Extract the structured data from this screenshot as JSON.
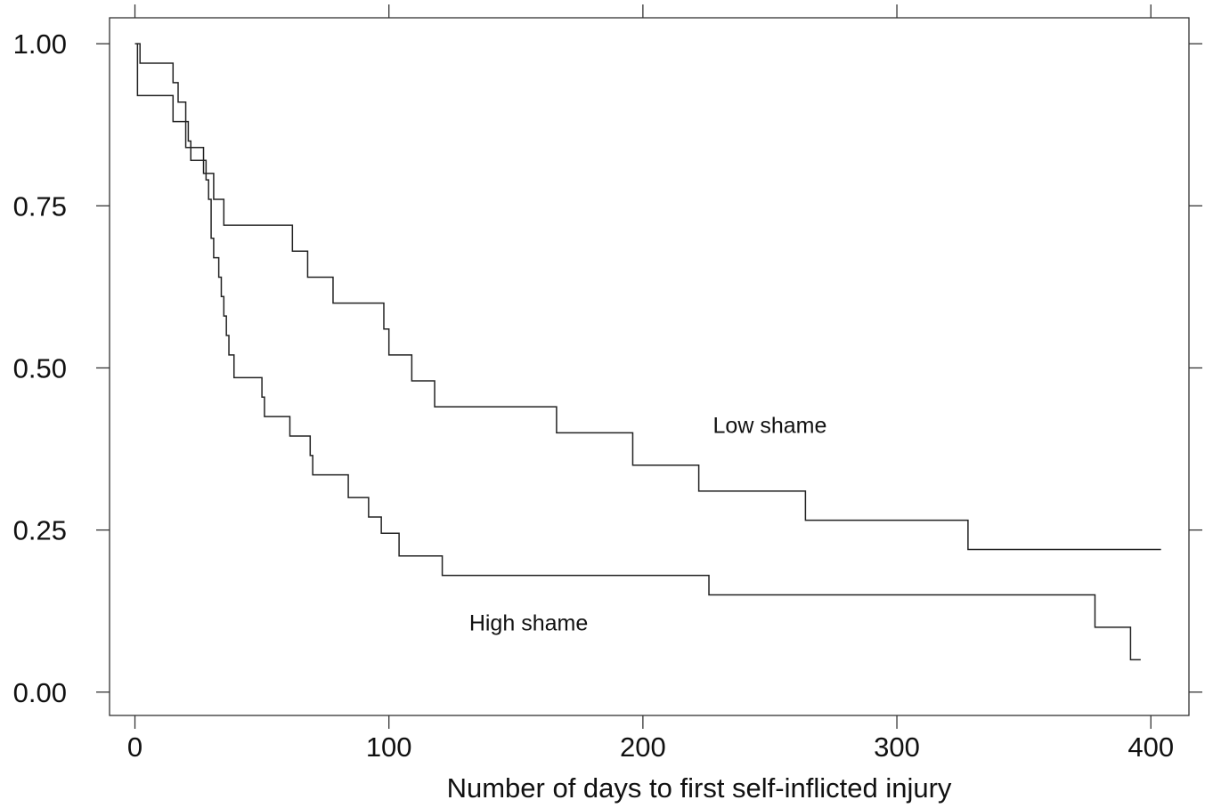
{
  "chart_data": {
    "type": "line",
    "title": "",
    "xlabel": "Number of days to first self-inflicted injury",
    "ylabel": "",
    "xlim": [
      -10,
      415
    ],
    "ylim": [
      -0.036,
      1.04
    ],
    "xticks": [
      0,
      100,
      200,
      300,
      400
    ],
    "xtick_labels": [
      "0",
      "100",
      "200",
      "300",
      "400"
    ],
    "yticks": [
      0,
      0.25,
      0.5,
      0.75,
      1
    ],
    "ytick_labels": [
      "0.00",
      "0.25",
      "0.50",
      "0.75",
      "1.00"
    ],
    "grid": false,
    "step": true,
    "series": [
      {
        "name": "Low shame",
        "x": [
          0,
          1,
          1,
          13,
          15,
          19,
          20,
          22,
          27,
          31,
          35,
          62,
          68,
          78,
          98,
          100,
          109,
          118,
          166,
          196,
          222,
          264,
          328,
          404
        ],
        "y": [
          1.0,
          0.96,
          0.92,
          0.92,
          0.88,
          0.88,
          0.84,
          0.84,
          0.8,
          0.76,
          0.72,
          0.68,
          0.64,
          0.6,
          0.56,
          0.52,
          0.48,
          0.44,
          0.4,
          0.35,
          0.31,
          0.265,
          0.22,
          0.22
        ]
      },
      {
        "name": "High shame",
        "x": [
          1,
          2,
          13,
          15,
          17,
          20,
          21,
          22,
          28,
          29,
          30,
          31,
          32,
          33,
          34,
          35,
          36,
          37,
          38,
          39,
          40,
          50,
          51,
          61,
          69,
          70,
          84,
          92,
          97,
          104,
          121,
          226,
          378,
          392,
          396
        ],
        "y": [
          1.0,
          0.97,
          0.97,
          0.94,
          0.91,
          0.88,
          0.85,
          0.82,
          0.79,
          0.76,
          0.7,
          0.67,
          0.67,
          0.64,
          0.61,
          0.58,
          0.55,
          0.52,
          0.52,
          0.485,
          0.485,
          0.455,
          0.425,
          0.395,
          0.365,
          0.335,
          0.3,
          0.27,
          0.245,
          0.21,
          0.18,
          0.15,
          0.1,
          0.05,
          0.05
        ]
      }
    ],
    "annotations": [
      {
        "text": "Low shame",
        "x": 250,
        "y": 0.4
      },
      {
        "text": "High shame",
        "x": 155,
        "y": 0.095
      }
    ]
  }
}
